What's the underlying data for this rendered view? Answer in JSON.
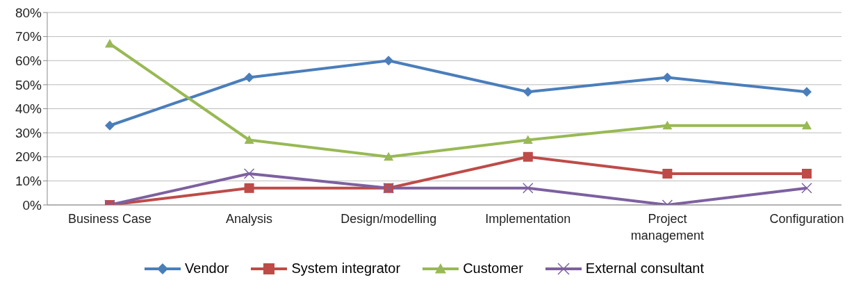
{
  "chart_data": {
    "type": "line",
    "categories": [
      "Business Case",
      "Analysis",
      "Design/modelling",
      "Implementation",
      "Project management",
      "Configuration"
    ],
    "series": [
      {
        "name": "Vendor",
        "color": "#4a7ebb",
        "marker": "diamond",
        "values": [
          33,
          53,
          60,
          47,
          53,
          47
        ]
      },
      {
        "name": "System integrator",
        "color": "#be4b48",
        "marker": "square",
        "values": [
          0,
          7,
          7,
          20,
          13,
          13
        ]
      },
      {
        "name": "Customer",
        "color": "#98b954",
        "marker": "triangle",
        "values": [
          67,
          27,
          20,
          27,
          33,
          33
        ]
      },
      {
        "name": "External consultant",
        "color": "#7d60a0",
        "marker": "cross",
        "values": [
          0,
          13,
          7,
          7,
          0,
          7
        ]
      }
    ],
    "ylim": [
      0,
      80
    ],
    "yticks": [
      {
        "value": 0,
        "label": "0%"
      },
      {
        "value": 10,
        "label": "10%"
      },
      {
        "value": 20,
        "label": "20%"
      },
      {
        "value": 30,
        "label": "30%"
      },
      {
        "value": 40,
        "label": "40%"
      },
      {
        "value": 50,
        "label": "50%"
      },
      {
        "value": 60,
        "label": "60%"
      },
      {
        "value": 70,
        "label": "70%"
      },
      {
        "value": 80,
        "label": "80%"
      }
    ],
    "grid": "y",
    "legend": "bottom",
    "line_style": "solid"
  }
}
